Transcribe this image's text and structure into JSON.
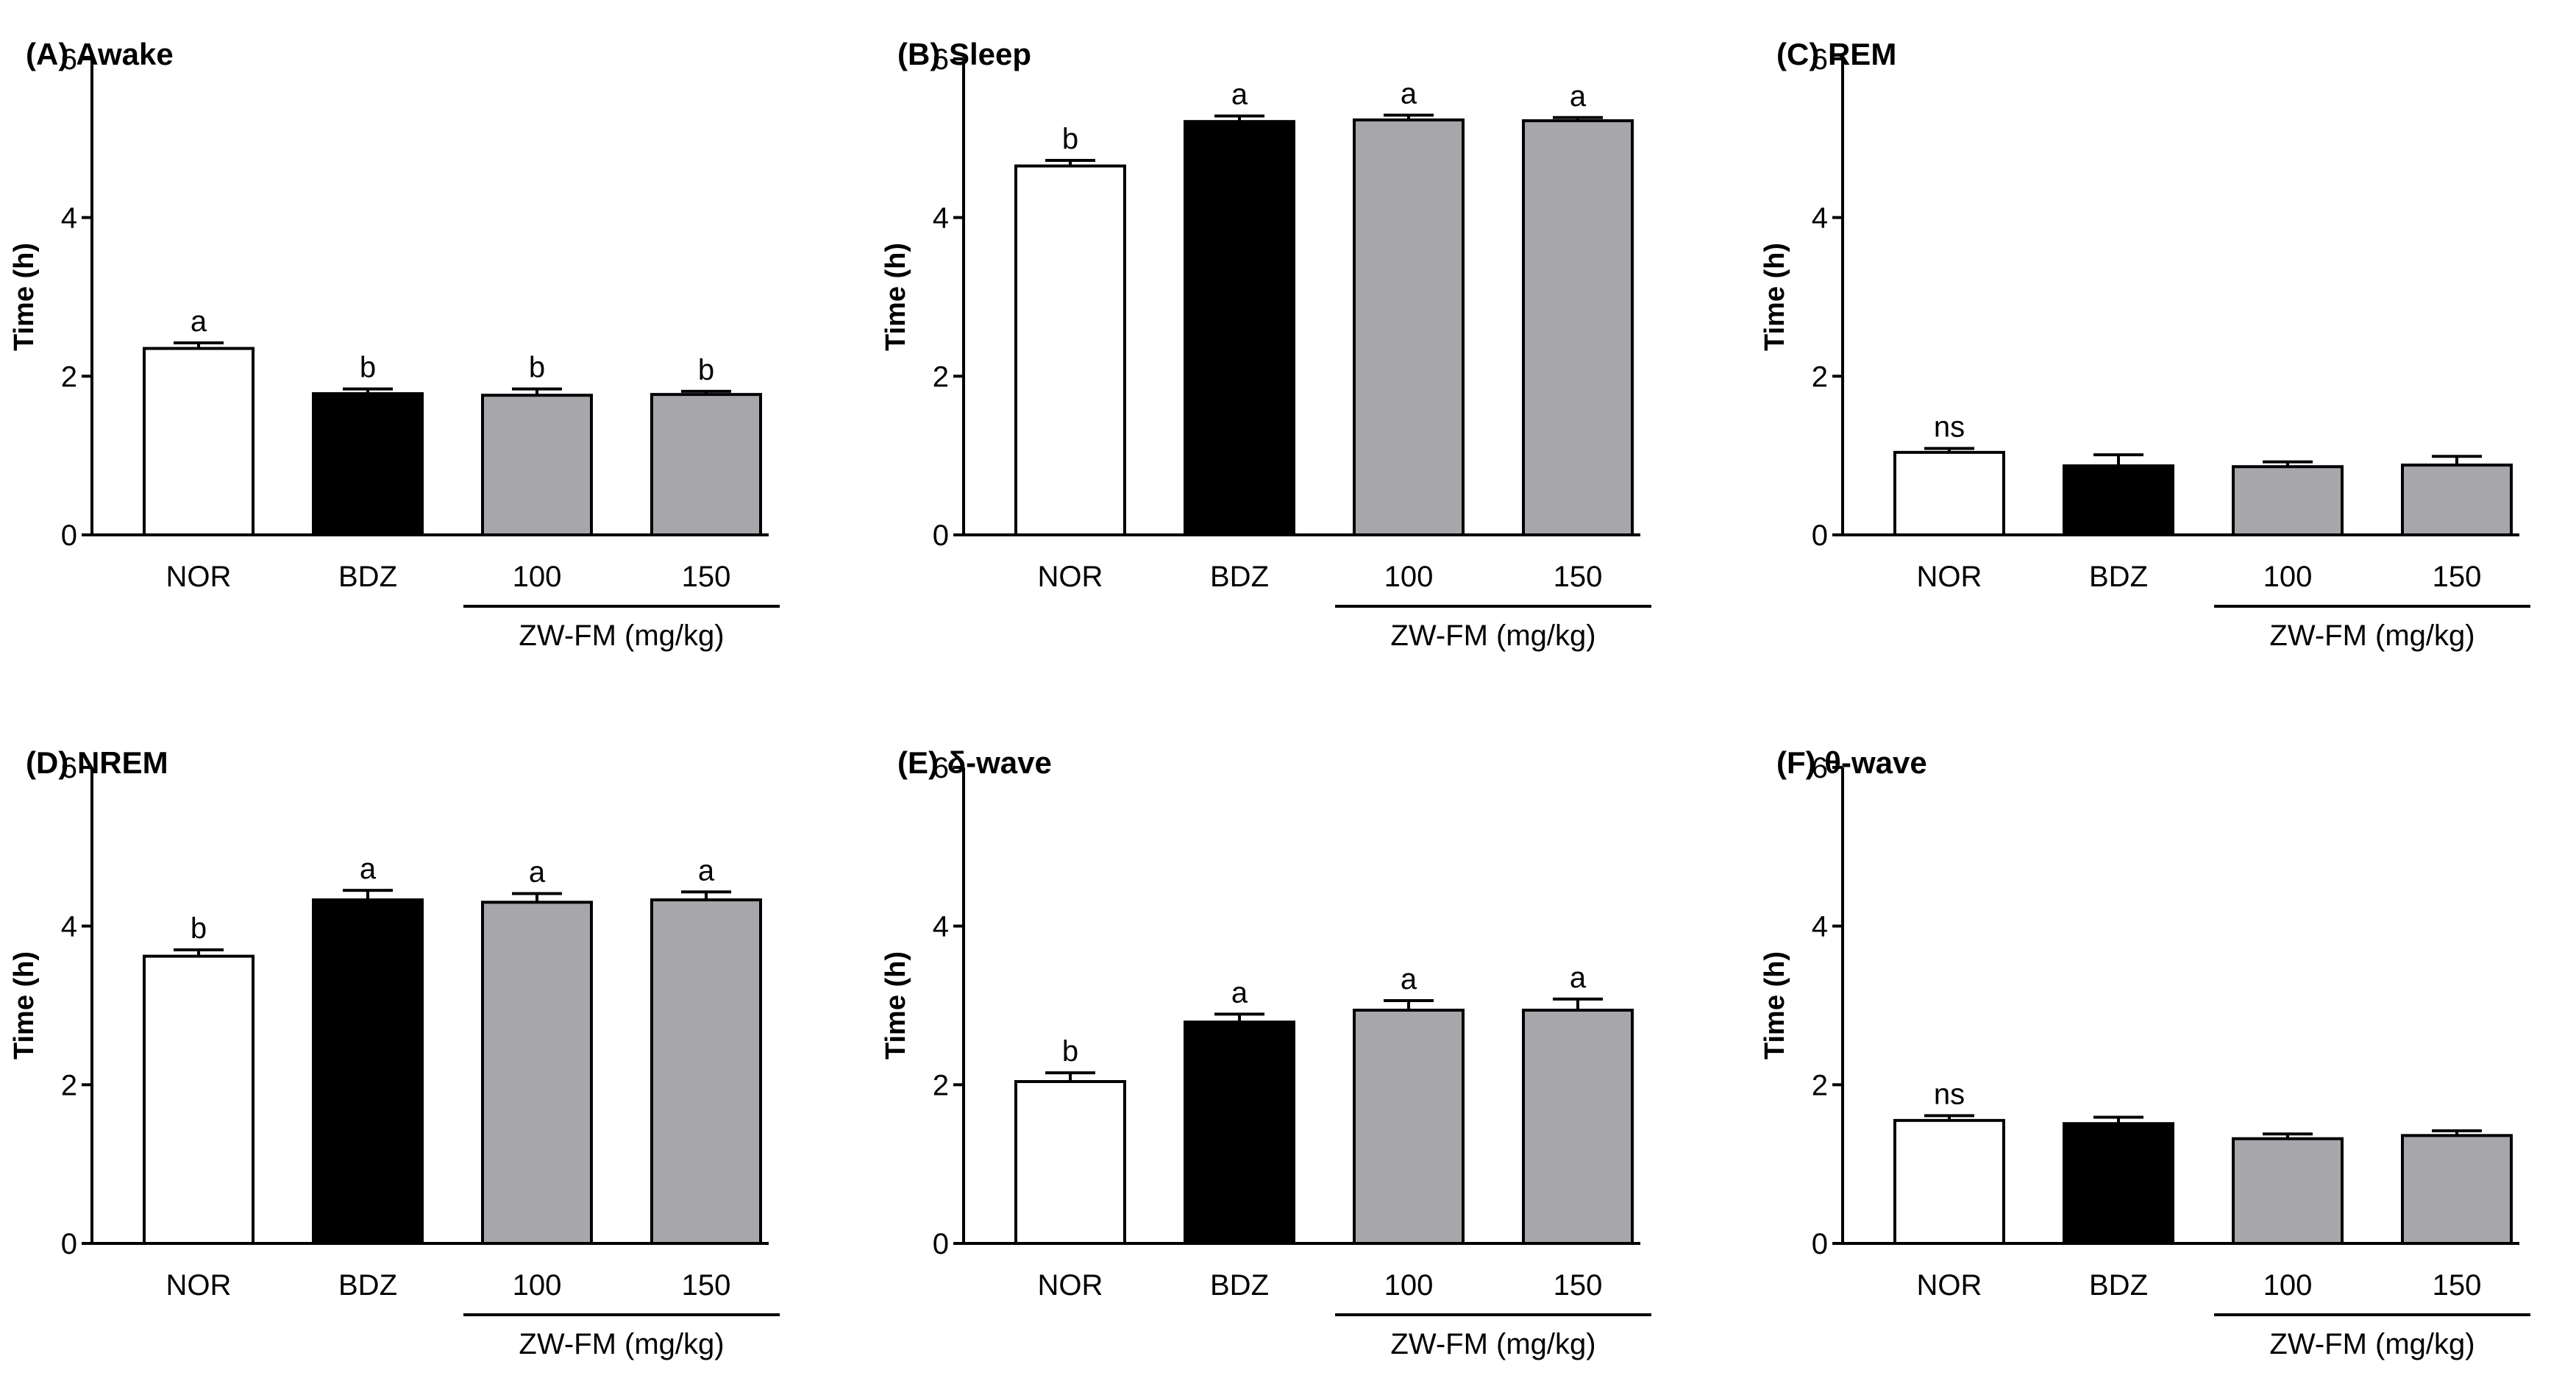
{
  "chart_data": [
    {
      "type": "bar",
      "title": "(A) Awake",
      "ylabel": "Time (h)",
      "ylim": [
        0,
        6
      ],
      "yticks": [
        "0",
        "2",
        "4",
        "6"
      ],
      "categories": [
        "NOR",
        "BDZ",
        "100",
        "150"
      ],
      "group_label": "ZW-FM (mg/kg)",
      "values": [
        2.35,
        1.78,
        1.76,
        1.77
      ],
      "errors": [
        0.07,
        0.06,
        0.08,
        0.04
      ],
      "significance": [
        "a",
        "b",
        "b",
        "b"
      ],
      "bar_colors": [
        "#ffffff",
        "#000000",
        "#a7a6ab",
        "#a7a6ab"
      ]
    },
    {
      "type": "bar",
      "title": "(B) Sleep",
      "ylabel": "Time (h)",
      "ylim": [
        0,
        6
      ],
      "yticks": [
        "0",
        "2",
        "4",
        "6"
      ],
      "categories": [
        "NOR",
        "BDZ",
        "100",
        "150"
      ],
      "group_label": "ZW-FM (mg/kg)",
      "values": [
        4.65,
        5.21,
        5.23,
        5.22
      ],
      "errors": [
        0.07,
        0.07,
        0.06,
        0.04
      ],
      "significance": [
        "b",
        "a",
        "a",
        "a"
      ],
      "bar_colors": [
        "#ffffff",
        "#000000",
        "#a7a6ab",
        "#a7a6ab"
      ]
    },
    {
      "type": "bar",
      "title": "(C) REM",
      "ylabel": "Time (h)",
      "ylim": [
        0,
        6
      ],
      "yticks": [
        "0",
        "2",
        "4",
        "6"
      ],
      "categories": [
        "NOR",
        "BDZ",
        "100",
        "150"
      ],
      "group_label": "ZW-FM (mg/kg)",
      "values": [
        1.04,
        0.87,
        0.86,
        0.88
      ],
      "errors": [
        0.05,
        0.14,
        0.06,
        0.11
      ],
      "significance": [
        "ns",
        "",
        "",
        ""
      ],
      "bar_colors": [
        "#ffffff",
        "#000000",
        "#a7a6ab",
        "#a7a6ab"
      ]
    },
    {
      "type": "bar",
      "title": "(D) NREM",
      "ylabel": "Time (h)",
      "ylim": [
        0,
        6
      ],
      "yticks": [
        "0",
        "2",
        "4",
        "6"
      ],
      "categories": [
        "NOR",
        "BDZ",
        "100",
        "150"
      ],
      "group_label": "ZW-FM (mg/kg)",
      "values": [
        3.62,
        4.33,
        4.3,
        4.33
      ],
      "errors": [
        0.08,
        0.12,
        0.11,
        0.1
      ],
      "significance": [
        "b",
        "a",
        "a",
        "a"
      ],
      "bar_colors": [
        "#ffffff",
        "#000000",
        "#a7a6ab",
        "#a7a6ab"
      ]
    },
    {
      "type": "bar",
      "title": "(E) δ-wave",
      "ylabel": "Time (h)",
      "ylim": [
        0,
        6
      ],
      "yticks": [
        "0",
        "2",
        "4",
        "6"
      ],
      "categories": [
        "NOR",
        "BDZ",
        "100",
        "150"
      ],
      "group_label": "ZW-FM (mg/kg)",
      "values": [
        2.04,
        2.79,
        2.94,
        2.94
      ],
      "errors": [
        0.11,
        0.1,
        0.12,
        0.14
      ],
      "significance": [
        "b",
        "a",
        "a",
        "a"
      ],
      "bar_colors": [
        "#ffffff",
        "#000000",
        "#a7a6ab",
        "#a7a6ab"
      ]
    },
    {
      "type": "bar",
      "title": "(F) θ-wave",
      "ylabel": "Time (h)",
      "ylim": [
        0,
        6
      ],
      "yticks": [
        "0",
        "2",
        "4",
        "6"
      ],
      "categories": [
        "NOR",
        "BDZ",
        "100",
        "150"
      ],
      "group_label": "ZW-FM (mg/kg)",
      "values": [
        1.55,
        1.51,
        1.32,
        1.36
      ],
      "errors": [
        0.06,
        0.08,
        0.06,
        0.06
      ],
      "significance": [
        "ns",
        "",
        "",
        ""
      ],
      "bar_colors": [
        "#ffffff",
        "#000000",
        "#a7a6ab",
        "#a7a6ab"
      ]
    }
  ]
}
